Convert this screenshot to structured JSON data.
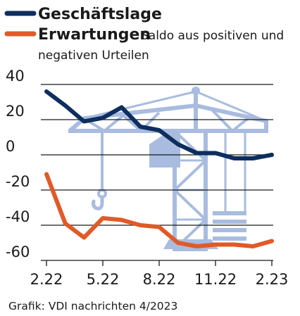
{
  "chart_data": {
    "type": "line",
    "title": "",
    "xlabel": "",
    "ylabel": "",
    "ylim": [
      -60,
      40
    ],
    "yticks": [
      "40",
      "20",
      "0",
      "-20",
      "-40",
      "-60"
    ],
    "ytick_values": [
      40,
      20,
      0,
      -20,
      -40,
      -60
    ],
    "xticks": [
      "2.22",
      "5.22",
      "8.22",
      "11.22",
      "2.23"
    ],
    "xtick_months": [
      0,
      3,
      6,
      9,
      12
    ],
    "grid": "horizontal",
    "x": [
      0,
      1,
      2,
      3,
      4,
      5,
      6,
      7,
      8,
      9,
      10,
      11,
      12
    ],
    "series": [
      {
        "name": "Geschäftslage",
        "color": "#0d2e5e",
        "values": [
          36,
          28,
          19,
          21,
          27,
          16,
          14,
          6,
          1,
          1,
          -2,
          -2,
          0
        ]
      },
      {
        "name": "Erwartungen",
        "color": "#e05a28",
        "values": [
          -11,
          -39,
          -47,
          -36,
          -37,
          -40,
          -41,
          -50,
          -52,
          -51,
          -51,
          -52,
          -49
        ]
      }
    ],
    "legend": {
      "position": "top-left",
      "subtitle_line1": "Saldo aus positiven und",
      "subtitle_line2": "negativen Urteilen"
    },
    "background_illustration": "construction-crane",
    "illustration_color": "#a9bcdf",
    "source": "Grafik: VDI nachrichten 4/2023"
  }
}
